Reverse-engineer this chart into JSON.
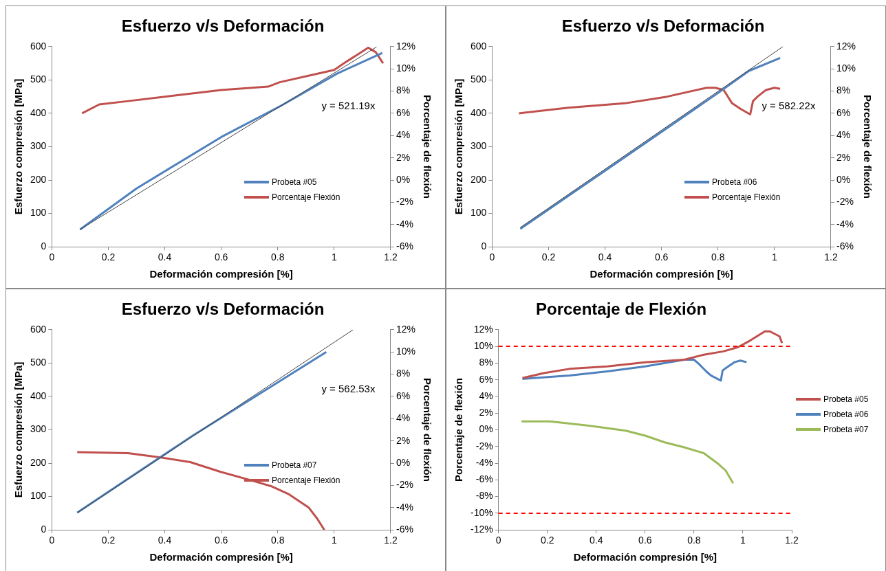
{
  "chart_data": [
    {
      "type": "line",
      "title": "Esfuerzo v/s Deformación",
      "xlabel": "Deformación compresión [%]",
      "ylabel": "Esfuerzo compresión [MPa]",
      "y2label": "Porcentaje de flexión",
      "xlim": [
        0,
        1.2
      ],
      "xticks": [
        0,
        0.2,
        0.4,
        0.6,
        0.8,
        1,
        1.2
      ],
      "ylim": [
        0,
        600
      ],
      "yticks": [
        0,
        100,
        200,
        300,
        400,
        500,
        600
      ],
      "y2lim": [
        -6,
        12
      ],
      "y2ticks": [
        {
          "value": -6,
          "label": "-6%"
        },
        {
          "value": -4,
          "label": "-4%"
        },
        {
          "value": -2,
          "label": "-2%"
        },
        {
          "value": 0,
          "label": "0%"
        },
        {
          "value": 2,
          "label": "2%"
        },
        {
          "value": 4,
          "label": "4%"
        },
        {
          "value": 6,
          "label": "6%"
        },
        {
          "value": 8,
          "label": "8%"
        },
        {
          "value": 10,
          "label": "10%"
        },
        {
          "value": 12,
          "label": "12%"
        }
      ],
      "legend": "bottom right",
      "marker": "none",
      "annotations": [
        "y = 521.19x"
      ],
      "series": [
        {
          "name": "Probeta #05",
          "color": "#4f81bd",
          "x": [
            0.1,
            0.3,
            0.6,
            0.81,
            1.01,
            1.17
          ],
          "values": [
            52,
            175,
            329,
            422,
            519,
            581
          ]
        },
        {
          "name": "Porcentaje Flexión",
          "color": "#c0504d",
          "axis": "y2",
          "x": [
            0.107,
            0.168,
            0.27,
            0.4,
            0.6,
            0.766,
            0.807,
            0.93,
            1.0,
            1.04,
            1.09,
            1.12,
            1.147,
            1.173
          ],
          "values": [
            6.0,
            6.8,
            7.1,
            7.5,
            8.1,
            8.4,
            8.8,
            9.5,
            9.9,
            10.6,
            11.4,
            11.9,
            11.5,
            10.5
          ]
        },
        {
          "type": "line",
          "color": "#404040",
          "x": [
            0.1,
            1.15
          ],
          "values": [
            52,
            599
          ]
        }
      ]
    },
    {
      "type": "line",
      "title": "Esfuerzo v/s Deformación",
      "xlabel": "Deformación compresión [%]",
      "ylabel": "Esfuerzo compresión [MPa]",
      "y2label": "Porcentaje de flexión",
      "xlim": [
        0,
        1.2
      ],
      "xticks": [
        0,
        0.2,
        0.4,
        0.6,
        0.8,
        1,
        1.2
      ],
      "ylim": [
        0,
        600
      ],
      "yticks": [
        0,
        100,
        200,
        300,
        400,
        500,
        600
      ],
      "y2lim": [
        -6,
        12
      ],
      "y2ticks": [
        {
          "value": -6,
          "label": "-6%"
        },
        {
          "value": -4,
          "label": "-4%"
        },
        {
          "value": -2,
          "label": "-2%"
        },
        {
          "value": 0,
          "label": "0%"
        },
        {
          "value": 2,
          "label": "2%"
        },
        {
          "value": 4,
          "label": "4%"
        },
        {
          "value": 6,
          "label": "6%"
        },
        {
          "value": 8,
          "label": "8%"
        },
        {
          "value": 10,
          "label": "10%"
        },
        {
          "value": 12,
          "label": "12%"
        }
      ],
      "legend": "bottom right",
      "marker": "none",
      "annotations": [
        "y = 582.22x"
      ],
      "series": [
        {
          "name": "Probeta #06",
          "color": "#4f81bd",
          "x": [
            0.1,
            0.4,
            0.807,
            0.909,
            1.02
          ],
          "values": [
            54,
            228,
            465,
            527,
            566
          ]
        },
        {
          "name": "Porcentaje Flexión",
          "color": "#c0504d",
          "axis": "y2",
          "x": [
            0.095,
            0.27,
            0.47,
            0.62,
            0.76,
            0.79,
            0.82,
            0.85,
            0.88,
            0.914,
            0.924,
            0.94,
            0.97,
            1.0,
            1.02
          ],
          "values": [
            6.0,
            6.5,
            6.9,
            7.5,
            8.3,
            8.3,
            8.1,
            6.9,
            6.4,
            5.9,
            7.1,
            7.5,
            8.1,
            8.3,
            8.2
          ]
        },
        {
          "type": "line",
          "color": "#404040",
          "x": [
            0.1,
            1.03
          ],
          "values": [
            58,
            600
          ]
        }
      ]
    },
    {
      "type": "line",
      "title": "Esfuerzo v/s Deformación",
      "xlabel": "Deformación compresión [%]",
      "ylabel": "Esfuerzo compresión [MPa]",
      "y2label": "Porcentaje de flexión",
      "xlim": [
        0,
        1.2
      ],
      "xticks": [
        0,
        0.2,
        0.4,
        0.6,
        0.8,
        1,
        1.2
      ],
      "ylim": [
        0,
        600
      ],
      "yticks": [
        0,
        100,
        200,
        300,
        400,
        500,
        600
      ],
      "y2lim": [
        -6,
        12
      ],
      "y2ticks": [
        {
          "value": -6,
          "label": "-6%"
        },
        {
          "value": -4,
          "label": "-4%"
        },
        {
          "value": -2,
          "label": "-2%"
        },
        {
          "value": 0,
          "label": "0%"
        },
        {
          "value": 2,
          "label": "2%"
        },
        {
          "value": 4,
          "label": "4%"
        },
        {
          "value": 6,
          "label": "6%"
        },
        {
          "value": 8,
          "label": "8%"
        },
        {
          "value": 10,
          "label": "10%"
        },
        {
          "value": 12,
          "label": "12%"
        }
      ],
      "legend": "bottom right",
      "marker": "none",
      "annotations": [
        "y = 562.53x"
      ],
      "series": [
        {
          "name": "Probeta #07",
          "color": "#4f81bd",
          "x": [
            0.09,
            0.5,
            0.972
          ],
          "values": [
            52,
            283,
            533
          ]
        },
        {
          "name": "Porcentaje Flexión",
          "color": "#c0504d",
          "axis": "y2",
          "x": [
            0.09,
            0.27,
            0.39,
            0.49,
            0.6,
            0.7,
            0.78,
            0.84,
            0.91,
            0.94,
            0.965
          ],
          "values": [
            1.0,
            0.9,
            0.5,
            0.1,
            -0.8,
            -1.5,
            -2.1,
            -2.8,
            -4.0,
            -5.0,
            -6.0
          ]
        },
        {
          "type": "line",
          "color": "#404040",
          "x": [
            0.09,
            1.067
          ],
          "values": [
            51,
            600
          ]
        }
      ]
    },
    {
      "type": "line",
      "title": "Porcentaje de Flexión",
      "xlabel": "Deformación compresión [%]",
      "ylabel": "Porcentaje de flexión",
      "xlim": [
        0,
        1.2
      ],
      "xticks": [
        0,
        0.2,
        0.4,
        0.6,
        0.8,
        1,
        1.2
      ],
      "ylim": [
        -12,
        12
      ],
      "yticks": [
        {
          "value": -12,
          "label": "-12%"
        },
        {
          "value": -10,
          "label": "-10%"
        },
        {
          "value": -8,
          "label": "-8%"
        },
        {
          "value": -6,
          "label": "-6%"
        },
        {
          "value": -4,
          "label": "-4%"
        },
        {
          "value": -2,
          "label": "-2%"
        },
        {
          "value": 0,
          "label": "0%"
        },
        {
          "value": 2,
          "label": "2%"
        },
        {
          "value": 4,
          "label": "4%"
        },
        {
          "value": 6,
          "label": "6%"
        },
        {
          "value": 8,
          "label": "8%"
        },
        {
          "value": 10,
          "label": "10%"
        },
        {
          "value": 12,
          "label": "12%"
        }
      ],
      "legend": "right",
      "marker": "none",
      "ref_lines": [
        {
          "axis": "y",
          "value": 10,
          "color": "#ff0000",
          "line_style": "dashed"
        },
        {
          "axis": "y",
          "value": -10,
          "color": "#ff0000",
          "line_style": "dashed"
        }
      ],
      "series": [
        {
          "name": "Probeta #05",
          "color": "#c0504d",
          "x": [
            0.098,
            0.185,
            0.29,
            0.445,
            0.6,
            0.76,
            0.84,
            0.92,
            0.98,
            1.03,
            1.09,
            1.11,
            1.15,
            1.16
          ],
          "values": [
            6.2,
            6.8,
            7.3,
            7.6,
            8.1,
            8.4,
            9.0,
            9.4,
            9.9,
            10.7,
            11.8,
            11.8,
            11.2,
            10.4
          ]
        },
        {
          "name": "Probeta #06",
          "color": "#4f81bd",
          "x": [
            0.098,
            0.29,
            0.445,
            0.6,
            0.76,
            0.8,
            0.82,
            0.85,
            0.87,
            0.91,
            0.917,
            0.93,
            0.965,
            0.99,
            1.015
          ],
          "values": [
            6.1,
            6.5,
            7.0,
            7.6,
            8.4,
            8.4,
            7.9,
            7.0,
            6.5,
            5.9,
            7.1,
            7.4,
            8.1,
            8.3,
            8.1
          ]
        },
        {
          "name": "Probeta #07",
          "color": "#9bbb59",
          "x": [
            0.094,
            0.21,
            0.37,
            0.52,
            0.6,
            0.68,
            0.76,
            0.84,
            0.9,
            0.93,
            0.96
          ],
          "values": [
            1.0,
            1.0,
            0.5,
            -0.1,
            -0.7,
            -1.5,
            -2.1,
            -2.8,
            -4.1,
            -4.9,
            -6.4
          ]
        }
      ]
    }
  ]
}
